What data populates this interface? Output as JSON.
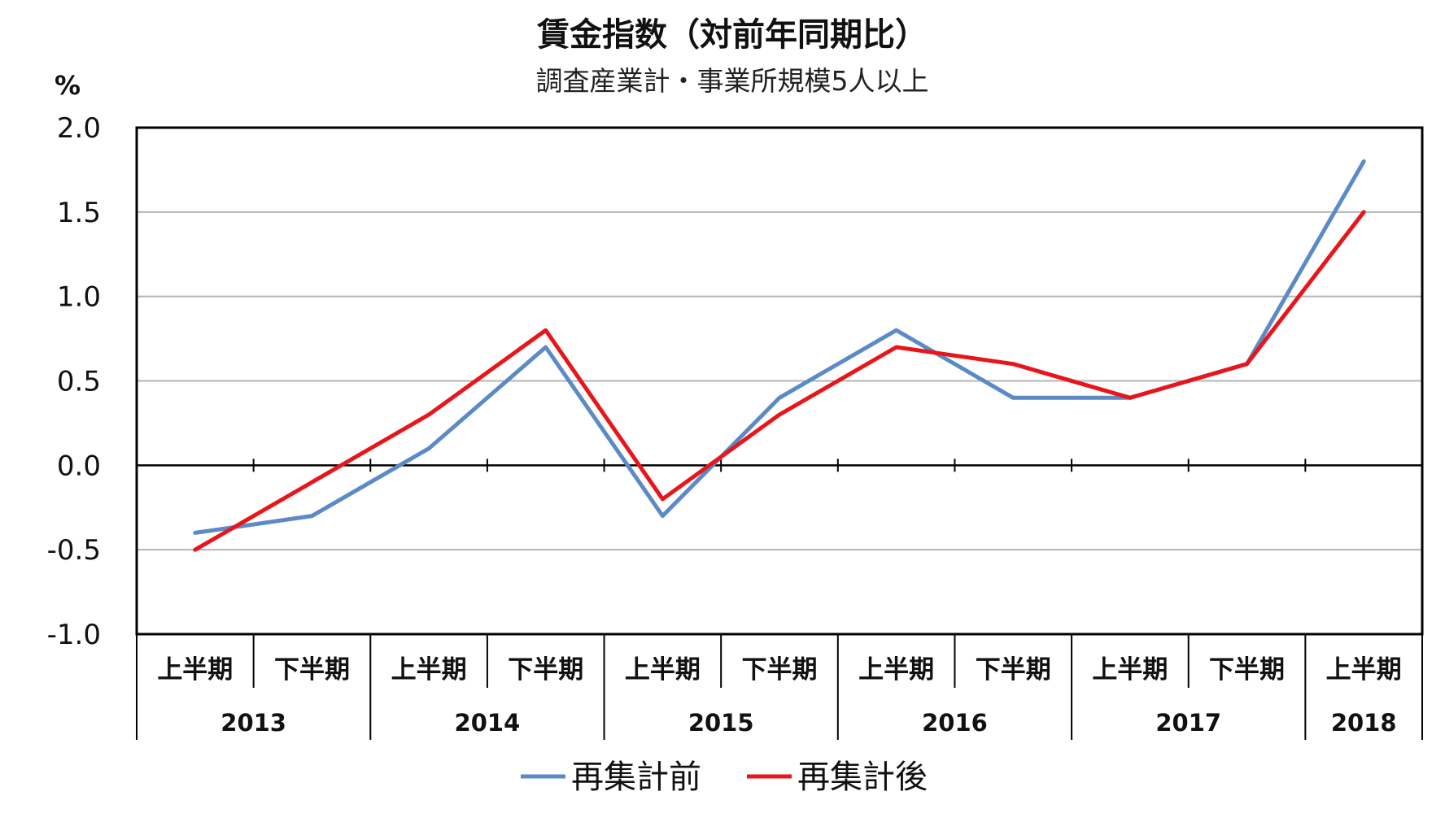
{
  "chart_data": {
    "type": "line",
    "title": "賃金指数（対前年同期比）",
    "subtitle": "調査産業計・事業所規模5人以上",
    "ylabel": "%",
    "ylim": [
      -1.0,
      2.0
    ],
    "yticks": [
      "2.0",
      "1.5",
      "1.0",
      "0.5",
      "0.0",
      "-0.5",
      "-1.0"
    ],
    "ytick_values": [
      2.0,
      1.5,
      1.0,
      0.5,
      0.0,
      -0.5,
      -1.0
    ],
    "grid": true,
    "legend_position": "bottom",
    "categories": [
      "上半期",
      "下半期",
      "上半期",
      "下半期",
      "上半期",
      "下半期",
      "上半期",
      "下半期",
      "上半期",
      "下半期",
      "上半期"
    ],
    "years": [
      {
        "label": "2013",
        "periods": 2
      },
      {
        "label": "2014",
        "periods": 2
      },
      {
        "label": "2015",
        "periods": 2
      },
      {
        "label": "2016",
        "periods": 2
      },
      {
        "label": "2017",
        "periods": 2
      },
      {
        "label": "2018",
        "periods": 1
      }
    ],
    "series": [
      {
        "name": "再集計前",
        "color": "#5B8AC6",
        "values": [
          -0.4,
          -0.3,
          0.1,
          0.7,
          -0.3,
          0.4,
          0.8,
          0.4,
          0.4,
          0.6,
          1.8
        ]
      },
      {
        "name": "再集計後",
        "color": "#E8161B",
        "values": [
          -0.5,
          -0.1,
          0.3,
          0.8,
          -0.2,
          0.3,
          0.7,
          0.6,
          0.4,
          0.6,
          1.5
        ]
      }
    ]
  }
}
